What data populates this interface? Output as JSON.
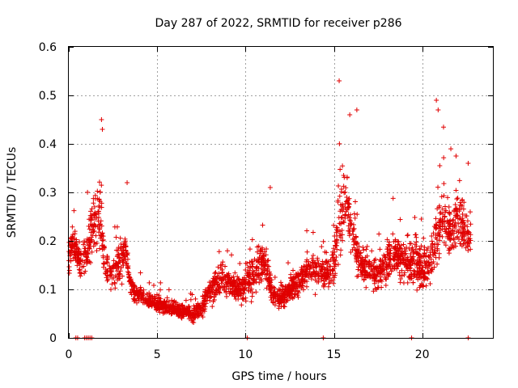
{
  "chart_data": {
    "type": "scatter",
    "title": "Day 287 of 2022, SRMTID for receiver p286",
    "xlabel": "GPS time / hours",
    "ylabel": "SRMTID / TECUs",
    "xlim": [
      0,
      24
    ],
    "ylim": [
      0,
      0.6
    ],
    "x_ticks": [
      0,
      5,
      10,
      15,
      20
    ],
    "y_ticks": [
      0,
      0.1,
      0.2,
      0.3,
      0.4,
      0.5,
      0.6
    ],
    "x_tick_labels": [
      "0",
      "5",
      "10",
      "15",
      "20"
    ],
    "y_tick_labels": [
      "0",
      "0.1",
      "0.2",
      "0.3",
      "0.4",
      "0.5",
      "0.6"
    ],
    "grid": true,
    "marker": "+",
    "color": "#e00000",
    "series": [
      {
        "name": "SRMTID",
        "profile_hours": [
          0.0,
          0.2,
          0.5,
          0.8,
          1.2,
          1.5,
          1.8,
          2.0,
          2.3,
          2.6,
          2.9,
          3.2,
          3.5,
          3.8,
          4.2,
          4.6,
          5.0,
          5.5,
          6.0,
          6.5,
          7.0,
          7.5,
          7.9,
          8.3,
          8.8,
          9.2,
          9.7,
          10.2,
          10.7,
          11.1,
          11.5,
          11.9,
          12.3,
          12.7,
          13.1,
          13.5,
          14.0,
          14.5,
          15.0,
          15.3,
          15.7,
          16.0,
          16.4,
          16.8,
          17.2,
          17.6,
          18.0,
          18.4,
          18.8,
          19.2,
          19.6,
          20.0,
          20.4,
          20.8,
          21.2,
          21.6,
          22.0,
          22.4,
          22.8
        ],
        "profile_median": [
          0.16,
          0.2,
          0.17,
          0.15,
          0.2,
          0.26,
          0.24,
          0.16,
          0.14,
          0.13,
          0.16,
          0.18,
          0.11,
          0.09,
          0.085,
          0.075,
          0.07,
          0.065,
          0.06,
          0.055,
          0.05,
          0.06,
          0.09,
          0.11,
          0.12,
          0.11,
          0.1,
          0.12,
          0.14,
          0.16,
          0.09,
          0.08,
          0.09,
          0.11,
          0.12,
          0.14,
          0.14,
          0.13,
          0.16,
          0.24,
          0.28,
          0.22,
          0.16,
          0.14,
          0.13,
          0.14,
          0.16,
          0.17,
          0.16,
          0.15,
          0.16,
          0.14,
          0.16,
          0.21,
          0.24,
          0.22,
          0.25,
          0.22,
          0.2
        ],
        "profile_spread": [
          0.06,
          0.05,
          0.05,
          0.06,
          0.1,
          0.12,
          0.1,
          0.06,
          0.05,
          0.06,
          0.09,
          0.06,
          0.04,
          0.03,
          0.03,
          0.025,
          0.025,
          0.025,
          0.025,
          0.025,
          0.025,
          0.03,
          0.04,
          0.05,
          0.05,
          0.05,
          0.05,
          0.07,
          0.08,
          0.07,
          0.04,
          0.03,
          0.04,
          0.05,
          0.05,
          0.06,
          0.06,
          0.05,
          0.08,
          0.12,
          0.12,
          0.08,
          0.06,
          0.06,
          0.06,
          0.06,
          0.07,
          0.07,
          0.07,
          0.07,
          0.08,
          0.07,
          0.08,
          0.11,
          0.11,
          0.1,
          0.1,
          0.08,
          0.07
        ],
        "peak_points": [
          [
            1.85,
            0.45
          ],
          [
            1.9,
            0.43
          ],
          [
            15.3,
            0.53
          ],
          [
            15.9,
            0.46
          ],
          [
            16.3,
            0.47
          ],
          [
            20.8,
            0.49
          ],
          [
            20.9,
            0.47
          ],
          [
            3.3,
            0.32
          ],
          [
            11.4,
            0.31
          ],
          [
            22.6,
            0.36
          ]
        ],
        "zero_points_hours": [
          0.4,
          0.5,
          0.9,
          1.0,
          1.1,
          1.2,
          1.3,
          10.1,
          14.4,
          19.4,
          22.6
        ]
      }
    ]
  }
}
